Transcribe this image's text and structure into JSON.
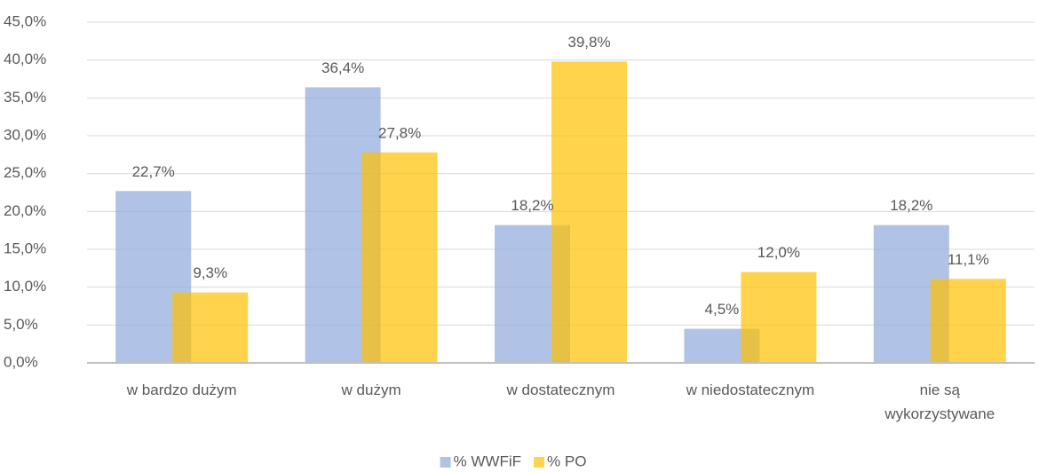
{
  "chart_data": {
    "type": "bar",
    "categories": [
      "w bardzo dużym",
      "w dużym",
      "w dostatecznym",
      "w niedostatecznym",
      "nie są\nwykorzystywane"
    ],
    "series": [
      {
        "name": "% WWFiF",
        "color": "#8faadc",
        "values": [
          22.7,
          36.4,
          18.2,
          4.5,
          18.2
        ],
        "value_labels": [
          "22,7%",
          "36,4%",
          "18,2%",
          "4,5%",
          "18,2%"
        ]
      },
      {
        "name": "% PO",
        "color": "#ffc000",
        "values": [
          9.3,
          27.8,
          39.8,
          12.0,
          11.1
        ],
        "value_labels": [
          "9,3%",
          "27,8%",
          "39,8%",
          "12,0%",
          "11,1%"
        ]
      }
    ],
    "ylim": [
      0,
      45
    ],
    "yticks": [
      {
        "value": 0,
        "label": "0,0%"
      },
      {
        "value": 5,
        "label": "5,0%"
      },
      {
        "value": 10,
        "label": "10,0%"
      },
      {
        "value": 15,
        "label": "15,0%"
      },
      {
        "value": 20,
        "label": "20,0%"
      },
      {
        "value": 25,
        "label": "25,0%"
      },
      {
        "value": 30,
        "label": "30,0%"
      },
      {
        "value": 35,
        "label": "35,0%"
      },
      {
        "value": 40,
        "label": "40,0%"
      },
      {
        "value": 45,
        "label": "45,0%"
      }
    ],
    "grid": true,
    "legend": "bottom"
  }
}
